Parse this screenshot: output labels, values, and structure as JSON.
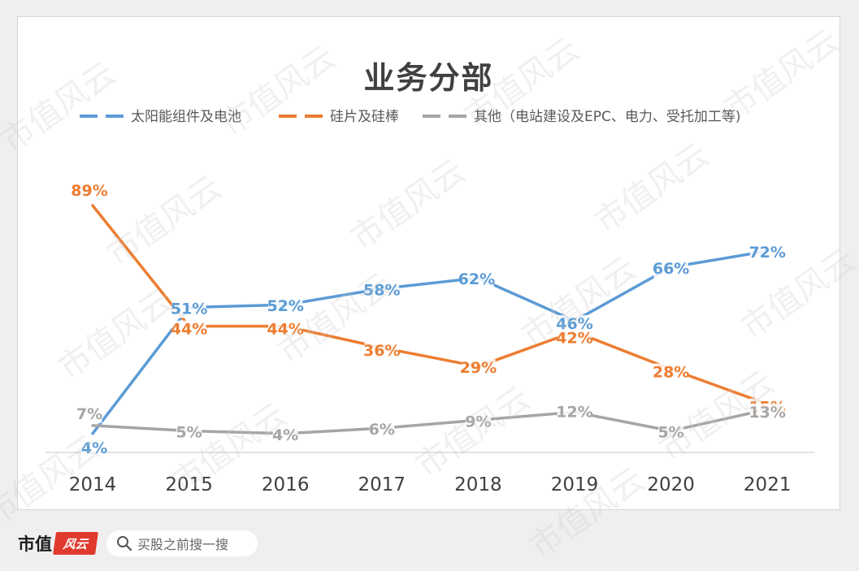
{
  "chart_data": {
    "type": "line",
    "title": "业务分部",
    "categories": [
      "2014",
      "2015",
      "2016",
      "2017",
      "2018",
      "2019",
      "2020",
      "2021"
    ],
    "series": [
      {
        "name": "太阳能组件及电池",
        "color": "#5b9bd5",
        "values": [
          4,
          51,
          52,
          58,
          62,
          46,
          66,
          72
        ],
        "labels": [
          "4%",
          "51%",
          "52%",
          "58%",
          "62%",
          "46%",
          "66%",
          "72%"
        ]
      },
      {
        "name": "硅片及硅棒",
        "color": "#ed7d31",
        "values": [
          89,
          44,
          44,
          36,
          29,
          42,
          28,
          15
        ],
        "labels": [
          "89%",
          "44%",
          "44%",
          "36%",
          "29%",
          "42%",
          "28%",
          "15%"
        ]
      },
      {
        "name": "其他（电站建设及EPC、电力、受托加工等)",
        "color": "#a5a5a5",
        "values": [
          7,
          5,
          4,
          6,
          9,
          12,
          5,
          13
        ],
        "labels": [
          "7%",
          "5%",
          "4%",
          "6%",
          "9%",
          "12%",
          "5%",
          "13%"
        ]
      }
    ],
    "legend_position": "top",
    "grid": false
  },
  "watermark": "市值风云",
  "footer": {
    "brand": "市值",
    "badge": "风云",
    "search_placeholder": "买股之前搜一搜"
  }
}
